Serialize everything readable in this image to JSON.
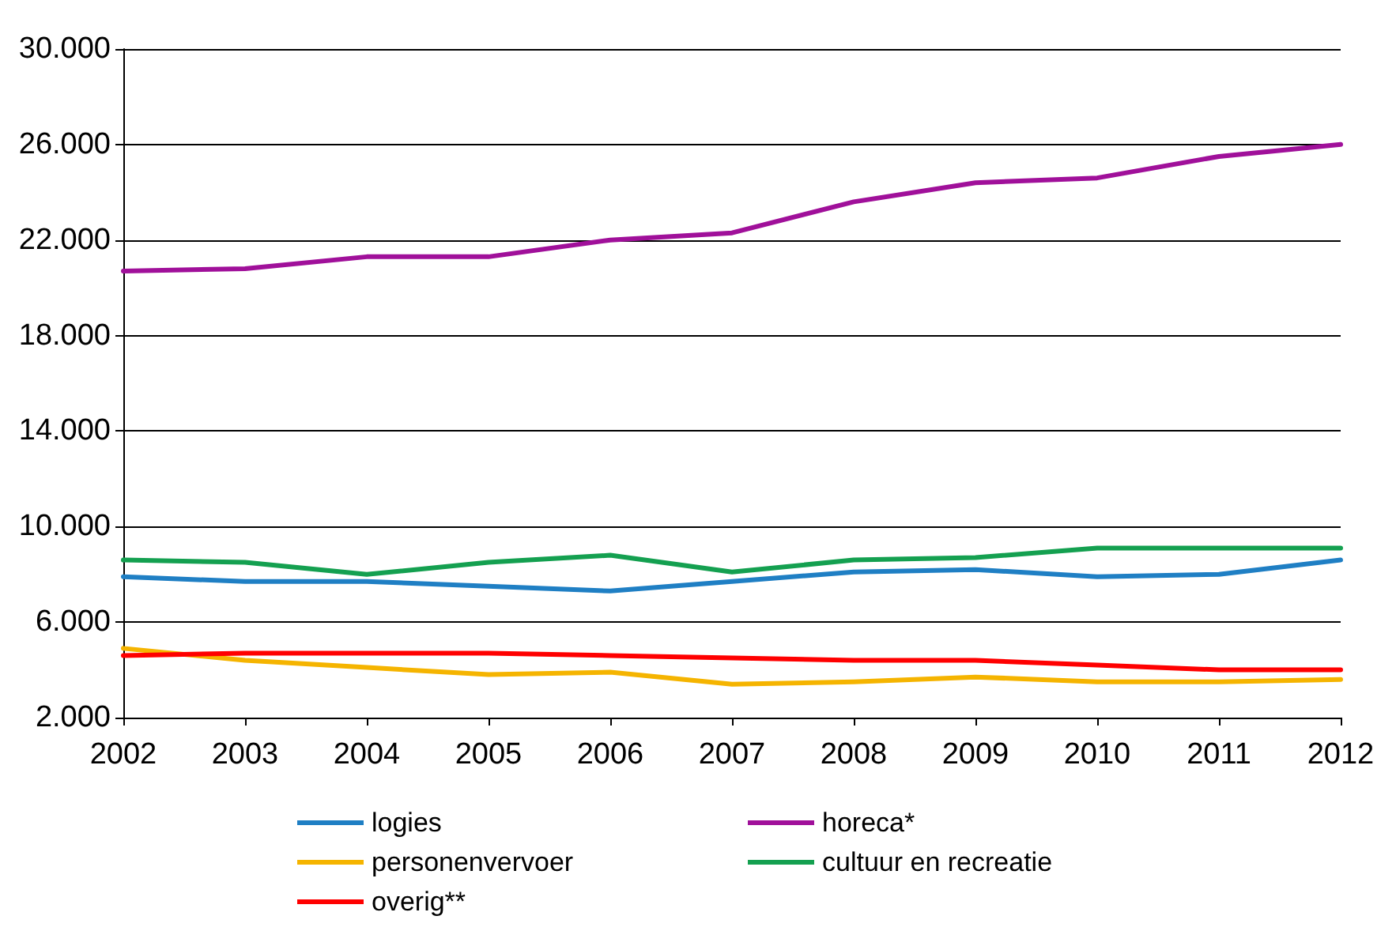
{
  "chart_data": {
    "type": "line",
    "categories": [
      "2002",
      "2003",
      "2004",
      "2005",
      "2006",
      "2007",
      "2008",
      "2009",
      "2010",
      "2011",
      "2012"
    ],
    "series": [
      {
        "name": "logies",
        "color": "#1f7fc4",
        "values": [
          7900,
          7700,
          7700,
          7500,
          7300,
          7700,
          8100,
          8200,
          7900,
          8000,
          8600
        ]
      },
      {
        "name": "horeca*",
        "color": "#a0109a",
        "values": [
          20700,
          20800,
          21300,
          21300,
          22000,
          22300,
          23600,
          24400,
          24600,
          25500,
          26000
        ]
      },
      {
        "name": "personenvervoer",
        "color": "#f5b400",
        "values": [
          4900,
          4400,
          4100,
          3800,
          3900,
          3400,
          3500,
          3700,
          3500,
          3500,
          3600
        ]
      },
      {
        "name": "cultuur en recreatie",
        "color": "#14a050",
        "values": [
          8600,
          8500,
          8000,
          8500,
          8800,
          8100,
          8600,
          8700,
          9100,
          9100,
          9100
        ]
      },
      {
        "name": "overig**",
        "color": "#ff0000",
        "values": [
          4600,
          4700,
          4700,
          4700,
          4600,
          4500,
          4400,
          4400,
          4200,
          4000,
          4000
        ]
      }
    ],
    "ylim": [
      2000,
      30000
    ],
    "yticks": [
      {
        "value": 2000,
        "label": "2.000"
      },
      {
        "value": 6000,
        "label": "6.000"
      },
      {
        "value": 10000,
        "label": "10.000"
      },
      {
        "value": 14000,
        "label": "14.000"
      },
      {
        "value": 18000,
        "label": "18.000"
      },
      {
        "value": 22000,
        "label": "22.000"
      },
      {
        "value": 26000,
        "label": "26.000"
      },
      {
        "value": 30000,
        "label": "30.000"
      }
    ],
    "grid": "y",
    "legend": "bottom",
    "marker": "none",
    "line_style": "solid"
  }
}
